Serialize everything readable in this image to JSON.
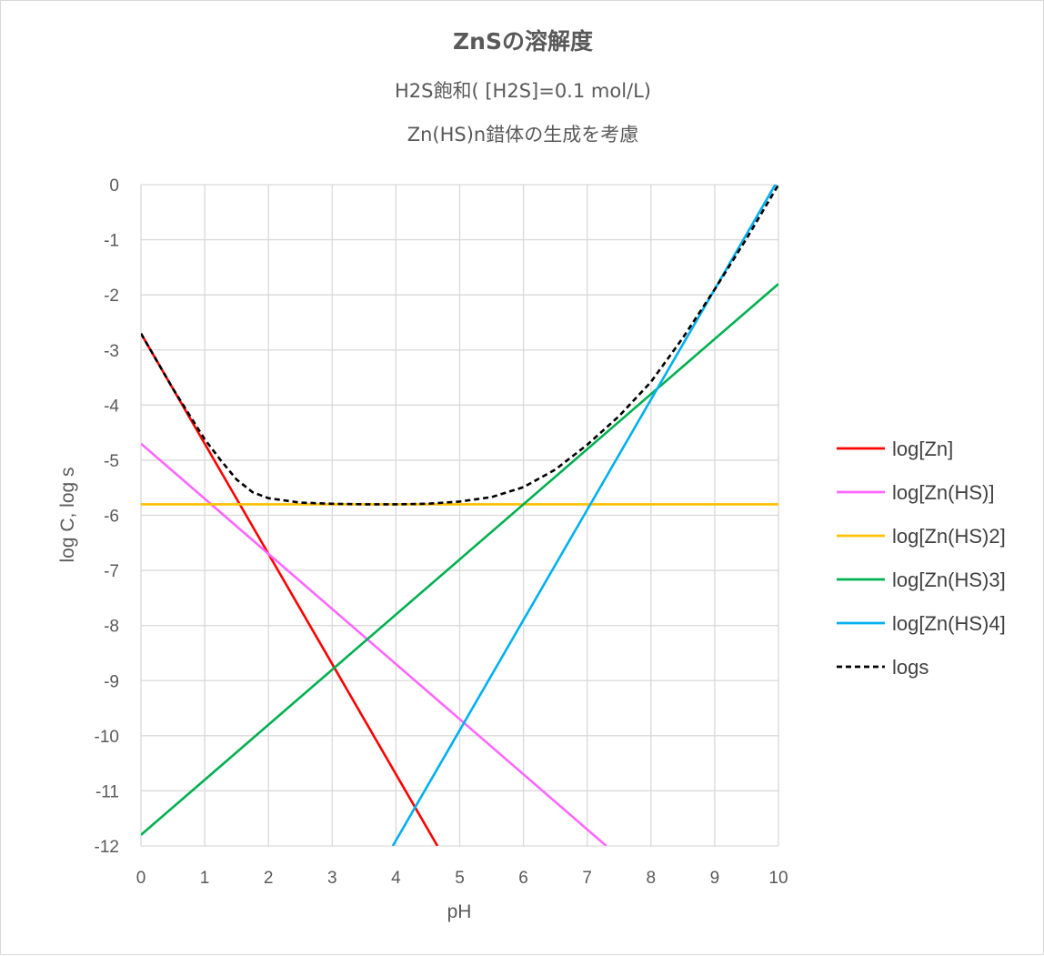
{
  "chart_data": {
    "type": "line",
    "title": "ZnSの溶解度",
    "subtitle_lines": [
      "H2S飽和( [H2S]=0.1 mol/L)",
      "Zn(HS)n錯体の生成を考慮"
    ],
    "xlabel": "pH",
    "ylabel": "log C, log s",
    "xlim": [
      0,
      10
    ],
    "ylim": [
      -12,
      0
    ],
    "x_ticks": [
      "0",
      "1",
      "2",
      "3",
      "4",
      "5",
      "6",
      "7",
      "8",
      "9",
      "10"
    ],
    "y_ticks": [
      "0",
      "-1",
      "-2",
      "-3",
      "-4",
      "-5",
      "-6",
      "-7",
      "-8",
      "-9",
      "-10",
      "-11",
      "-12"
    ],
    "grid": true,
    "legend_position": "right",
    "series": [
      {
        "name": "log[Zn]",
        "color": "#ff0000",
        "dash": "solid",
        "x": [
          0,
          4.65
        ],
        "y": [
          -2.7,
          -12
        ]
      },
      {
        "name": "log[Zn(HS)]",
        "color": "#ff66ff",
        "dash": "solid",
        "x": [
          0,
          7.3
        ],
        "y": [
          -4.7,
          -12
        ]
      },
      {
        "name": "log[Zn(HS)2]",
        "color": "#ffc000",
        "dash": "solid",
        "x": [
          0,
          10
        ],
        "y": [
          -5.8,
          -5.8
        ]
      },
      {
        "name": "log[Zn(HS)3]",
        "color": "#00b050",
        "dash": "solid",
        "x": [
          0,
          10
        ],
        "y": [
          -11.8,
          -1.8
        ]
      },
      {
        "name": "log[Zn(HS)4]",
        "color": "#00b0f0",
        "dash": "solid",
        "x": [
          3.95,
          10
        ],
        "y": [
          -12,
          0.1
        ]
      },
      {
        "name": "logs",
        "color": "#000000",
        "dash": "dashed",
        "x": [
          0,
          0.5,
          1,
          1.25,
          1.5,
          1.75,
          2,
          2.5,
          3,
          3.5,
          4,
          4.5,
          5,
          5.5,
          6,
          6.5,
          7,
          7.5,
          8,
          8.5,
          9,
          9.5,
          10
        ],
        "y": [
          -2.7,
          -3.7,
          -4.62,
          -5.0,
          -5.35,
          -5.58,
          -5.69,
          -5.77,
          -5.79,
          -5.8,
          -5.8,
          -5.79,
          -5.75,
          -5.67,
          -5.49,
          -5.17,
          -4.72,
          -4.2,
          -3.58,
          -2.78,
          -1.9,
          -0.98,
          0.0
        ]
      }
    ]
  }
}
